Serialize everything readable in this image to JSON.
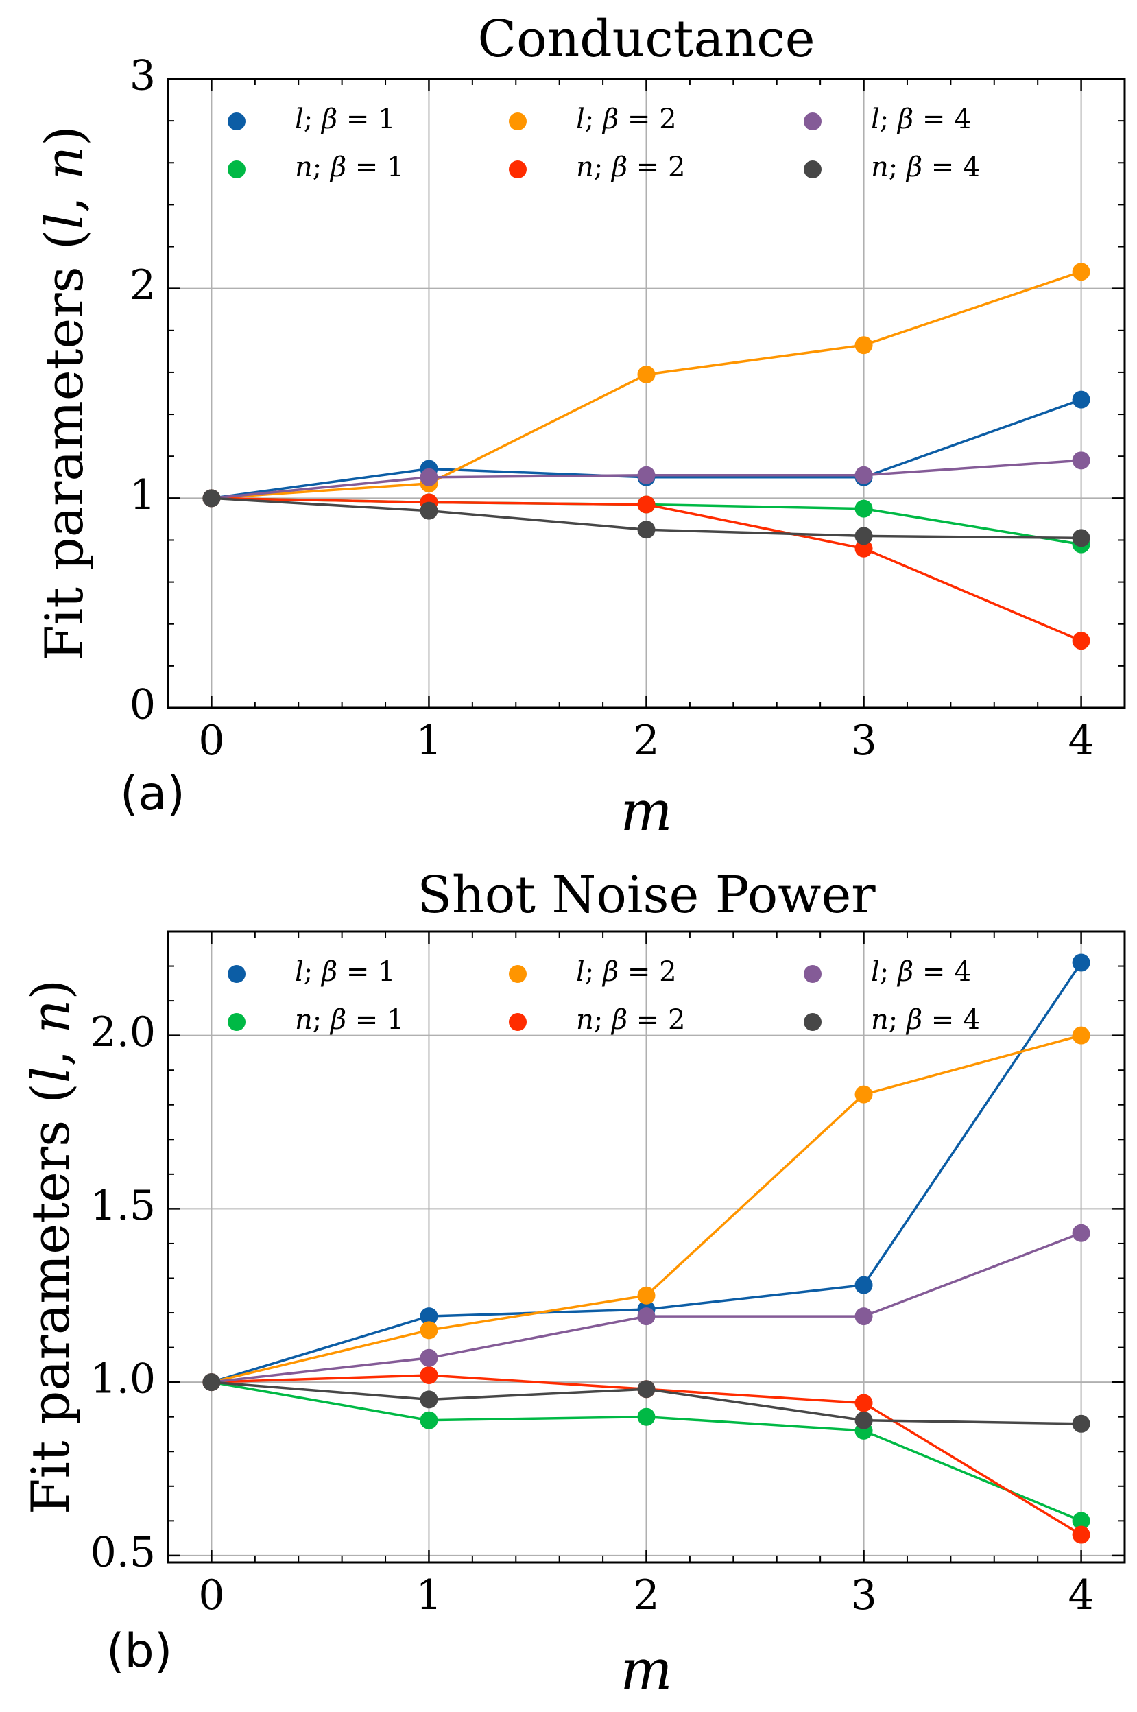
{
  "chart_data": [
    {
      "type": "line",
      "panel_label": "(a)",
      "title": "Conductance",
      "xlabel": "m",
      "ylabel": "Fit parameters (l, n)",
      "xlim": [
        -0.2,
        4.2
      ],
      "ylim": [
        0,
        3
      ],
      "x": [
        0,
        1,
        2,
        3,
        4
      ],
      "x_ticks": [
        0,
        1,
        2,
        3,
        4
      ],
      "x_tick_labels": [
        "0",
        "1",
        "2",
        "3",
        "4"
      ],
      "y_ticks": [
        0,
        1,
        2,
        3
      ],
      "y_tick_labels": [
        "0",
        "1",
        "2",
        "3"
      ],
      "y_minor_step": 0.2,
      "grid": true,
      "legend_position": "top",
      "legend_columns": 3,
      "series": [
        {
          "name": "l; β = 1",
          "color": "#0C5DA5",
          "values": [
            1.0,
            1.14,
            1.1,
            1.1,
            1.47
          ]
        },
        {
          "name": "n; β = 1",
          "color": "#00B945",
          "values": [
            1.0,
            0.98,
            0.97,
            0.95,
            0.78
          ]
        },
        {
          "name": "l; β = 2",
          "color": "#FF9500",
          "values": [
            1.0,
            1.07,
            1.59,
            1.73,
            2.08
          ]
        },
        {
          "name": "n; β = 2",
          "color": "#FF2C00",
          "values": [
            1.0,
            0.98,
            0.97,
            0.76,
            0.32
          ]
        },
        {
          "name": "l; β = 4",
          "color": "#845B97",
          "values": [
            1.0,
            1.1,
            1.11,
            1.11,
            1.18
          ]
        },
        {
          "name": "n; β = 4",
          "color": "#474747",
          "values": [
            1.0,
            0.94,
            0.85,
            0.82,
            0.81
          ]
        }
      ]
    },
    {
      "type": "line",
      "panel_label": "(b)",
      "title": "Shot Noise Power",
      "xlabel": "m",
      "ylabel": "Fit parameters (l, n)",
      "xlim": [
        -0.2,
        4.2
      ],
      "ylim": [
        0.48,
        2.3
      ],
      "x": [
        0,
        1,
        2,
        3,
        4
      ],
      "x_ticks": [
        0,
        1,
        2,
        3,
        4
      ],
      "x_tick_labels": [
        "0",
        "1",
        "2",
        "3",
        "4"
      ],
      "y_ticks": [
        0.5,
        1.0,
        1.5,
        2.0
      ],
      "y_tick_labels": [
        "0.5",
        "1.0",
        "1.5",
        "2.0"
      ],
      "y_minor_step": 0.1,
      "grid": true,
      "legend_position": "top",
      "legend_columns": 3,
      "series": [
        {
          "name": "l; β = 1",
          "color": "#0C5DA5",
          "values": [
            1.0,
            1.19,
            1.21,
            1.28,
            2.21
          ]
        },
        {
          "name": "n; β = 1",
          "color": "#00B945",
          "values": [
            1.0,
            0.89,
            0.9,
            0.86,
            0.6
          ]
        },
        {
          "name": "l; β = 2",
          "color": "#FF9500",
          "values": [
            1.0,
            1.15,
            1.25,
            1.83,
            2.0
          ]
        },
        {
          "name": "n; β = 2",
          "color": "#FF2C00",
          "values": [
            1.0,
            1.02,
            0.98,
            0.94,
            0.56
          ]
        },
        {
          "name": "l; β = 4",
          "color": "#845B97",
          "values": [
            1.0,
            1.07,
            1.19,
            1.19,
            1.43
          ]
        },
        {
          "name": "n; β = 4",
          "color": "#474747",
          "values": [
            1.0,
            0.95,
            0.98,
            0.89,
            0.88
          ]
        }
      ]
    }
  ]
}
